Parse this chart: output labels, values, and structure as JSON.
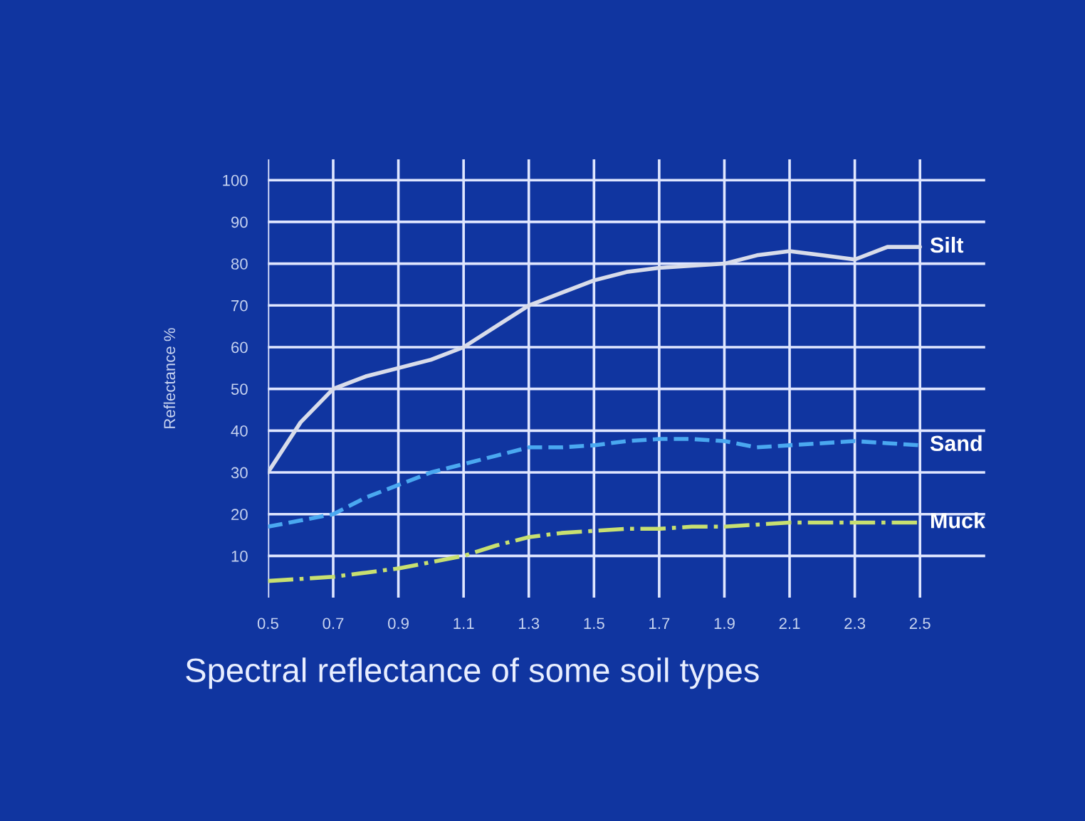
{
  "chart_data": {
    "type": "line",
    "title": "Spectral reflectance of some soil types",
    "ylabel": "Reflectance %",
    "x": [
      0.5,
      0.6,
      0.7,
      0.8,
      0.9,
      1.0,
      1.1,
      1.2,
      1.3,
      1.4,
      1.5,
      1.6,
      1.7,
      1.8,
      1.9,
      2.0,
      2.1,
      2.2,
      2.3,
      2.4,
      2.5
    ],
    "series": [
      {
        "name": "Silt",
        "color": "#d8dcea",
        "line_style": "solid",
        "values": [
          30,
          42,
          50,
          53,
          55,
          57,
          60,
          65,
          70,
          73,
          76,
          78,
          79,
          79.5,
          80,
          82,
          83,
          82,
          81,
          84,
          84
        ]
      },
      {
        "name": "Sand",
        "color": "#4aa8f0",
        "line_style": "dashed",
        "values": [
          17,
          18.5,
          20,
          24,
          27,
          30,
          32,
          34,
          36,
          36,
          36.5,
          37.5,
          38,
          38,
          37.5,
          36,
          36.5,
          37,
          37.5,
          37,
          36.5
        ]
      },
      {
        "name": "Muck",
        "color": "#c8e070",
        "line_style": "dashdot",
        "values": [
          4,
          4.5,
          5,
          6,
          7,
          8.5,
          10,
          12.5,
          14.5,
          15.5,
          16,
          16.5,
          16.5,
          17,
          17,
          17.5,
          18,
          18,
          18,
          18,
          18
        ]
      }
    ],
    "xlim": [
      0.5,
      2.7
    ],
    "ylim": [
      0,
      105
    ],
    "xticks": [
      0.5,
      0.7,
      0.9,
      1.1,
      1.3,
      1.5,
      1.7,
      1.9,
      2.1,
      2.3,
      2.5
    ],
    "yticks": [
      10,
      20,
      30,
      40,
      50,
      60,
      70,
      80,
      90,
      100
    ],
    "grid": true,
    "legend": false
  }
}
